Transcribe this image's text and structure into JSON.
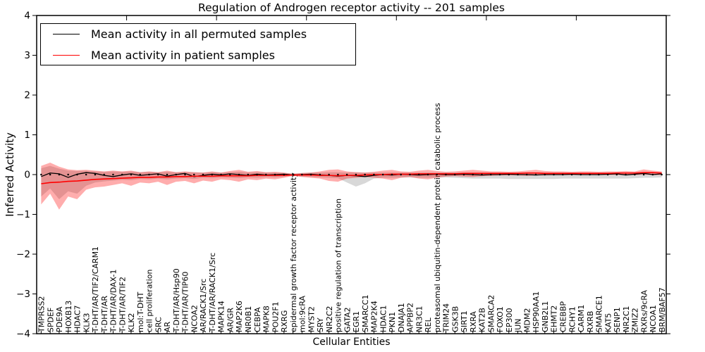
{
  "chart_data": {
    "type": "line",
    "title": "Regulation of Androgen receptor activity -- 201 samples",
    "xlabel": "Cellular Entities",
    "ylabel": "Inferred Activity",
    "ylim": [
      -4,
      4
    ],
    "ytick_labels": [
      "4",
      "3",
      "2",
      "1",
      "0",
      "−1",
      "−2",
      "−3",
      "−4"
    ],
    "ytick_values": [
      4,
      3,
      2,
      1,
      0,
      -1,
      -2,
      -3,
      -4
    ],
    "xtick_top_values": [
      10,
      20,
      30,
      40,
      50,
      60
    ],
    "grid": false,
    "legend_position": "upper left",
    "legend": {
      "entries": [
        {
          "label": "Mean activity in all permuted samples",
          "color": "#000000"
        },
        {
          "label": "Mean activity in patient samples",
          "color": "#ff0000"
        }
      ]
    },
    "categories": [
      "TMPRSS2",
      "SPDEF",
      "PDE9A",
      "HOXB13",
      "HDAC7",
      "KLK3",
      "T-DHT/AR/TIF2/CARM1",
      "T-DHT/AR",
      "T-DHT/AR/DAX-1",
      "T-DHT/AR/TIF2",
      "KLK2",
      "mol:T-DHT",
      "cell proliferation",
      "SRC",
      "AR",
      "T-DHT/AR/Hsp90",
      "T-DHT/AR/TIP60",
      "NCOA2",
      "AR/RACK1/Src",
      "T-DHT/AR/RACK1/Src",
      "MAPK14",
      "AR/GR",
      "MAP2K6",
      "NR0B1",
      "CEBPA",
      "MAPK8",
      "POU2F1",
      "RXRG",
      "epidermal growth factor receptor activity",
      "mol:9cRA",
      "MYST2",
      "SRY",
      "NR2C2",
      "positive regulation of transcription",
      "GATA2",
      "EGR1",
      "SMARCC1",
      "MAP2K4",
      "HDAC1",
      "PKN1",
      "DNAJA1",
      "APPBP2",
      "NR3C1",
      "REL",
      "proteasomal ubiquitin-dependent protein catabolic process",
      "TRIM24",
      "GSK3B",
      "SIRT1",
      "RXRA",
      "KAT2B",
      "SMARCA2",
      "FOXO1",
      "EP300",
      "JUN",
      "MDM2",
      "HSP90AA1",
      "GNB2L1",
      "EHMT2",
      "CREBBP",
      "RCHY1",
      "CARM1",
      "RXRB",
      "SMARCE1",
      "KAT5",
      "SENP1",
      "NR2C1",
      "ZMIZ2",
      "RXRs/9cRA",
      "NCOA1",
      "BRM/BAF57"
    ],
    "series": [
      {
        "name": "Mean activity in all permuted samples",
        "color": "#000000",
        "width": 1.3,
        "values": [
          -0.05,
          0.04,
          0.02,
          -0.07,
          0.01,
          0.05,
          0.03,
          -0.02,
          -0.05,
          -0.01,
          0.02,
          -0.02,
          0.0,
          0.02,
          -0.04,
          0.0,
          0.03,
          -0.05,
          -0.02,
          0.01,
          -0.01,
          0.02,
          0.0,
          -0.02,
          0.01,
          -0.01,
          0.0,
          0.01,
          -0.01,
          0.0,
          0.01,
          -0.01,
          -0.02,
          -0.04,
          -0.02,
          -0.03,
          -0.05,
          -0.02,
          0.0,
          -0.01,
          0.01,
          0.0,
          -0.01,
          0.0,
          0.01,
          0.0,
          0.0,
          0.01,
          0.0,
          -0.01,
          0.0,
          0.0,
          0.01,
          0.0,
          0.0,
          -0.01,
          0.0,
          0.0,
          0.0,
          0.01,
          0.0,
          0.0,
          0.0,
          0.01,
          0.02,
          -0.01,
          0.01,
          0.03,
          0.0,
          0.02
        ]
      },
      {
        "name": "Mean activity in patient samples",
        "color": "#ff0000",
        "width": 1.6,
        "values": [
          -0.23,
          -0.2,
          -0.19,
          -0.17,
          -0.16,
          -0.14,
          -0.12,
          -0.11,
          -0.1,
          -0.09,
          -0.08,
          -0.07,
          -0.07,
          -0.06,
          -0.06,
          -0.05,
          -0.05,
          -0.04,
          -0.04,
          -0.04,
          -0.03,
          -0.03,
          -0.03,
          -0.03,
          -0.02,
          -0.02,
          -0.02,
          -0.02,
          -0.01,
          -0.01,
          -0.01,
          -0.02,
          -0.02,
          -0.03,
          -0.02,
          -0.02,
          -0.01,
          0.0,
          0.0,
          0.01,
          0.01,
          0.01,
          0.02,
          0.02,
          0.02,
          0.02,
          0.02,
          0.03,
          0.03,
          0.03,
          0.03,
          0.03,
          0.03,
          0.03,
          0.04,
          0.04,
          0.03,
          0.03,
          0.03,
          0.03,
          0.03,
          0.03,
          0.03,
          0.03,
          0.04,
          0.04,
          0.04,
          0.05,
          0.05,
          0.04
        ]
      }
    ],
    "bands": [
      {
        "name": "permuted-samples-range",
        "color": "#999999",
        "opacity": 0.38,
        "upper": [
          0.16,
          0.22,
          0.15,
          0.1,
          0.09,
          0.1,
          0.08,
          0.07,
          0.08,
          0.07,
          0.08,
          0.06,
          0.07,
          0.06,
          0.07,
          0.06,
          0.06,
          0.06,
          0.05,
          0.06,
          0.05,
          0.06,
          0.07,
          0.05,
          0.06,
          0.05,
          0.05,
          0.04,
          0.02,
          0.04,
          0.05,
          0.05,
          0.06,
          0.06,
          0.05,
          0.06,
          0.05,
          0.05,
          0.05,
          0.05,
          0.05,
          0.05,
          0.05,
          0.05,
          0.05,
          0.05,
          0.05,
          0.05,
          0.05,
          0.05,
          0.05,
          0.05,
          0.05,
          0.05,
          0.05,
          0.05,
          0.05,
          0.05,
          0.05,
          0.05,
          0.05,
          0.05,
          0.05,
          0.05,
          0.05,
          0.05,
          0.05,
          0.05,
          0.05,
          0.04
        ],
        "lower": [
          -0.55,
          -0.35,
          -0.62,
          -0.42,
          -0.48,
          -0.28,
          -0.2,
          -0.17,
          -0.15,
          -0.13,
          -0.14,
          -0.11,
          -0.12,
          -0.1,
          -0.12,
          -0.1,
          -0.09,
          -0.11,
          -0.08,
          -0.09,
          -0.07,
          -0.08,
          -0.09,
          -0.07,
          -0.08,
          -0.06,
          -0.07,
          -0.05,
          -0.03,
          -0.05,
          -0.06,
          -0.07,
          -0.08,
          -0.09,
          -0.2,
          -0.3,
          -0.22,
          -0.1,
          -0.08,
          -0.08,
          -0.07,
          -0.07,
          -0.08,
          -0.08,
          -0.07,
          -0.07,
          -0.08,
          -0.09,
          -0.1,
          -0.1,
          -0.1,
          -0.1,
          -0.11,
          -0.11,
          -0.11,
          -0.11,
          -0.11,
          -0.11,
          -0.1,
          -0.1,
          -0.1,
          -0.1,
          -0.1,
          -0.1,
          -0.1,
          -0.1,
          -0.09,
          -0.08,
          -0.08,
          -0.07
        ]
      },
      {
        "name": "patient-samples-range",
        "color": "#ff0000",
        "opacity": 0.32,
        "upper": [
          0.22,
          0.3,
          0.2,
          0.13,
          0.11,
          0.12,
          0.1,
          0.08,
          0.1,
          0.08,
          0.1,
          0.06,
          0.08,
          0.06,
          0.1,
          0.06,
          0.08,
          0.06,
          0.05,
          0.08,
          0.05,
          0.09,
          0.12,
          0.07,
          0.09,
          0.06,
          0.07,
          0.05,
          0.02,
          0.04,
          0.05,
          0.08,
          0.12,
          0.13,
          0.08,
          0.06,
          0.05,
          0.07,
          0.1,
          0.12,
          0.08,
          0.07,
          0.1,
          0.12,
          0.09,
          0.07,
          0.08,
          0.1,
          0.12,
          0.1,
          0.08,
          0.08,
          0.07,
          0.08,
          0.1,
          0.12,
          0.09,
          0.08,
          0.08,
          0.07,
          0.08,
          0.08,
          0.07,
          0.08,
          0.08,
          0.09,
          0.08,
          0.13,
          0.1,
          0.08
        ],
        "lower": [
          -0.75,
          -0.48,
          -0.88,
          -0.55,
          -0.62,
          -0.38,
          -0.32,
          -0.3,
          -0.26,
          -0.22,
          -0.28,
          -0.2,
          -0.22,
          -0.18,
          -0.26,
          -0.18,
          -0.16,
          -0.22,
          -0.15,
          -0.18,
          -0.12,
          -0.14,
          -0.18,
          -0.12,
          -0.14,
          -0.1,
          -0.12,
          -0.08,
          -0.03,
          -0.06,
          -0.08,
          -0.1,
          -0.16,
          -0.18,
          -0.1,
          -0.08,
          -0.06,
          -0.08,
          -0.1,
          -0.14,
          -0.08,
          -0.06,
          -0.1,
          -0.12,
          -0.08,
          -0.05,
          -0.04,
          -0.05,
          -0.06,
          -0.04,
          -0.03,
          -0.02,
          -0.02,
          -0.02,
          -0.03,
          -0.02,
          -0.02,
          -0.01,
          -0.01,
          -0.01,
          -0.01,
          -0.01,
          -0.01,
          -0.01,
          -0.01,
          -0.01,
          -0.01,
          0.0,
          -0.01,
          -0.01
        ]
      }
    ],
    "zero_marker_line": {
      "y": 0,
      "style": "black dots, one per entity"
    }
  }
}
